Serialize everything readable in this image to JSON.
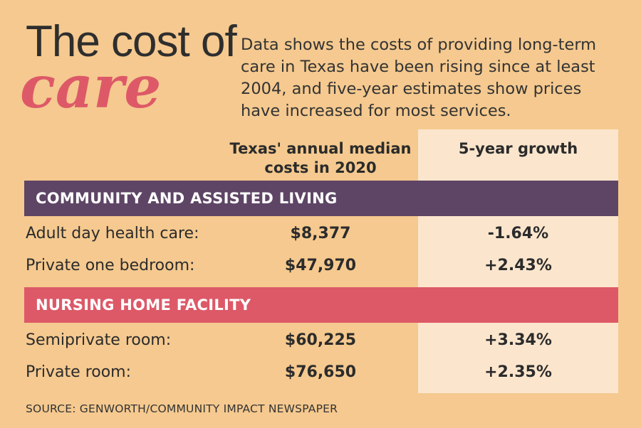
{
  "header": {
    "title_line1": "The cost of",
    "title_line2": "care",
    "intro": "Data shows the costs of providing long-term care in Texas have been rising since at least 2004, and five-year estimates show prices have increased for most services."
  },
  "colors": {
    "background": "#f5c98f",
    "growth_panel": "#fbe6cd",
    "community_band": "#5e4565",
    "nursing_band": "#dd5968",
    "title_accent": "#dd5968"
  },
  "chart_data": {
    "type": "table",
    "columns": [
      "Texas' annual median costs in 2020",
      "5-year growth"
    ],
    "sections": [
      {
        "name": "COMMUNITY AND ASSISTED LIVING",
        "rows": [
          {
            "label": "Adult day health care:",
            "cost": "$8,377",
            "growth": "-1.64%"
          },
          {
            "label": "Private one bedroom:",
            "cost": "$47,970",
            "growth": "+2.43%"
          }
        ]
      },
      {
        "name": "NURSING HOME FACILITY",
        "rows": [
          {
            "label": "Semiprivate room:",
            "cost": "$60,225",
            "growth": "+3.34%"
          },
          {
            "label": "Private room:",
            "cost": "$76,650",
            "growth": "+2.35%"
          }
        ]
      }
    ]
  },
  "source": "SOURCE: GENWORTH/COMMUNITY IMPACT NEWSPAPER"
}
